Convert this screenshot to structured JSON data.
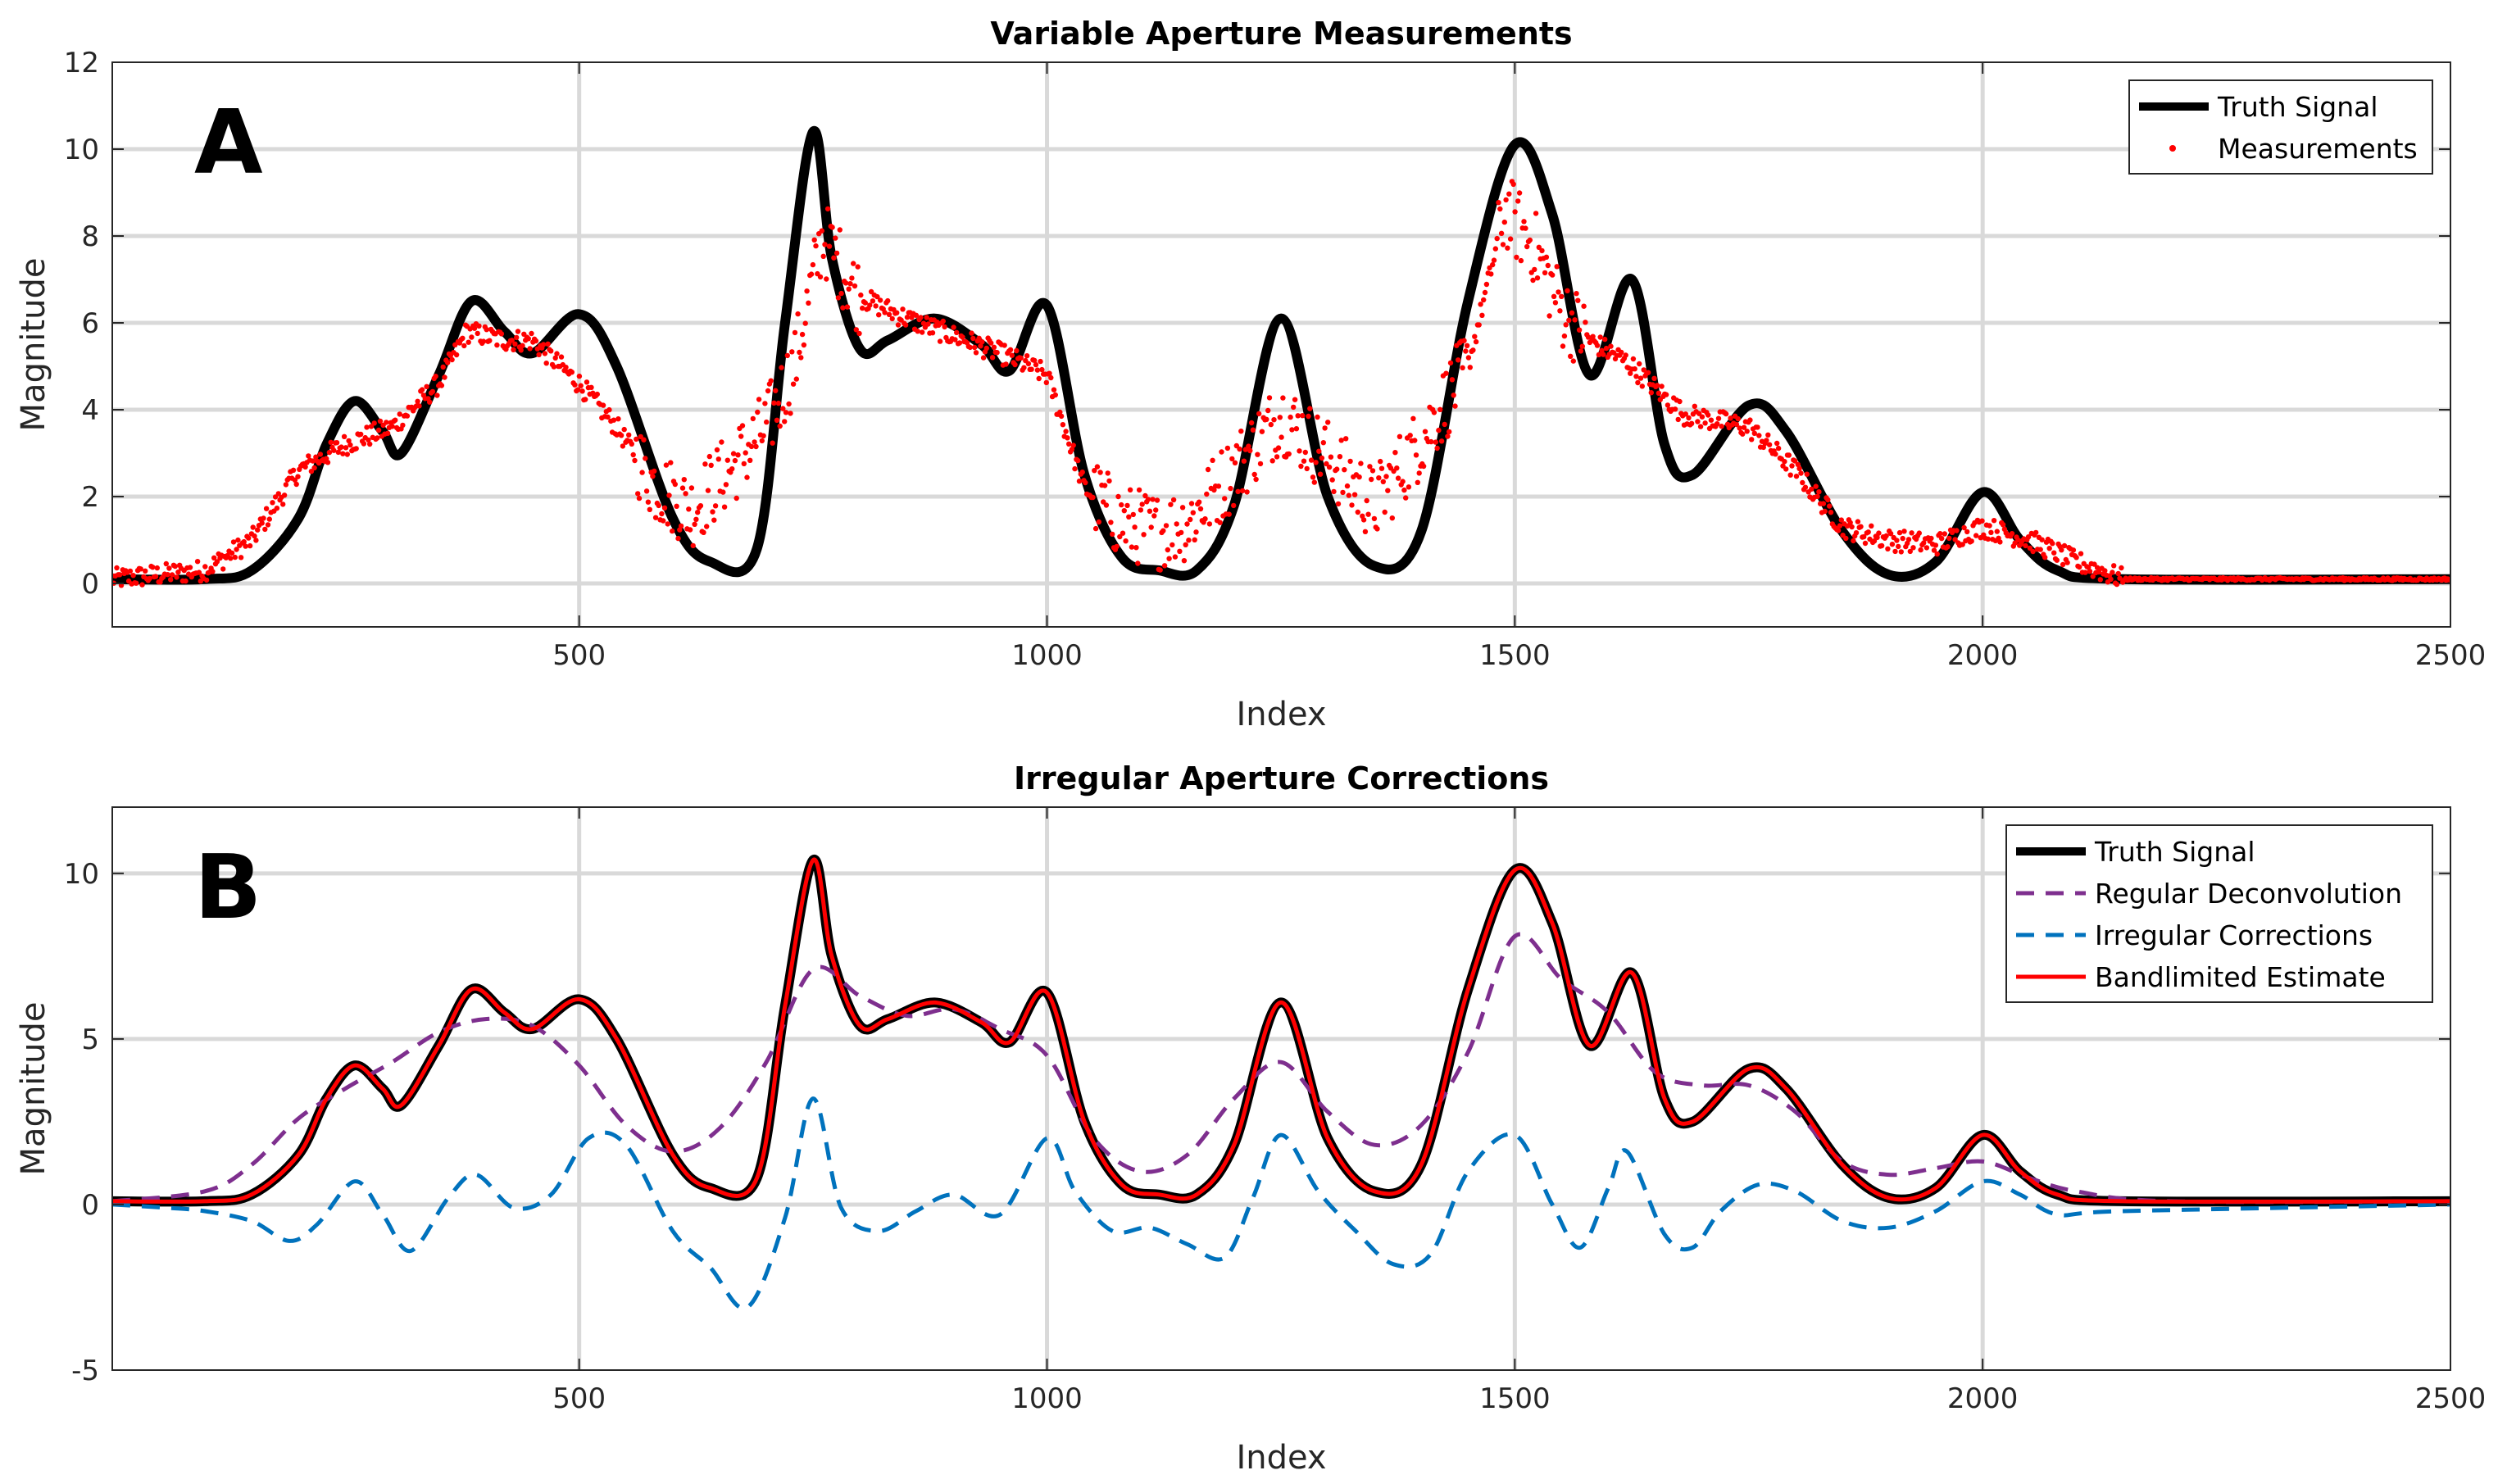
{
  "chart_data": [
    {
      "type": "line",
      "panel_label": "A",
      "title": "Variable Aperture Measurements",
      "xlabel": "Index",
      "ylabel": "Magnitude",
      "xlim": [
        1,
        2500
      ],
      "ylim": [
        -1,
        12
      ],
      "xticks": [
        500,
        1000,
        1500,
        2000,
        2500
      ],
      "yticks": [
        0,
        2,
        4,
        6,
        8,
        10,
        12
      ],
      "xtick_labels": [
        "500",
        "1000",
        "1500",
        "2000",
        "2500"
      ],
      "ytick_labels": [
        "0",
        "2",
        "4",
        "6",
        "8",
        "10",
        "12"
      ],
      "grid": true,
      "legend_position": "top-right",
      "series": [
        {
          "name": "Truth Signal",
          "style": "solid",
          "color": "#000000",
          "x": [
            1,
            100,
            150,
            200,
            230,
            260,
            290,
            310,
            350,
            385,
            420,
            450,
            500,
            540,
            600,
            640,
            690,
            720,
            750,
            770,
            800,
            830,
            880,
            930,
            960,
            1000,
            1040,
            1080,
            1120,
            1160,
            1200,
            1250,
            1300,
            1350,
            1400,
            1450,
            1500,
            1540,
            1580,
            1625,
            1660,
            1690,
            1750,
            1790,
            1850,
            1900,
            1950,
            2000,
            2040,
            2080,
            2150,
            2500
          ],
          "values": [
            0.1,
            0.1,
            0.3,
            1.5,
            3.2,
            4.2,
            3.5,
            3.0,
            4.8,
            6.5,
            5.8,
            5.3,
            6.2,
            5.0,
            1.5,
            0.5,
            0.8,
            6.0,
            10.4,
            7.5,
            5.4,
            5.6,
            6.1,
            5.5,
            4.9,
            6.4,
            2.5,
            0.6,
            0.3,
            0.3,
            1.8,
            6.1,
            2.0,
            0.4,
            1.2,
            6.5,
            10.1,
            8.5,
            4.8,
            7.0,
            3.2,
            2.5,
            4.1,
            3.5,
            1.2,
            0.2,
            0.5,
            2.1,
            1.0,
            0.3,
            0.1,
            0.1
          ]
        },
        {
          "name": "Measurements",
          "style": "points",
          "color": "#ff0000",
          "x": [
            1,
            100,
            150,
            200,
            250,
            300,
            350,
            380,
            420,
            450,
            500,
            540,
            580,
            620,
            660,
            700,
            730,
            760,
            800,
            850,
            900,
            950,
            1000,
            1040,
            1080,
            1120,
            1150,
            1200,
            1250,
            1300,
            1350,
            1400,
            1450,
            1490,
            1520,
            1550,
            1580,
            1620,
            1680,
            1750,
            1800,
            1850,
            1900,
            1950,
            2000,
            2050,
            2100,
            2150,
            2500
          ],
          "values": [
            0.1,
            0.3,
            1.0,
            2.6,
            3.2,
            3.6,
            4.6,
            5.8,
            5.6,
            5.6,
            4.6,
            3.6,
            2.3,
            1.7,
            2.6,
            3.6,
            5.0,
            8.0,
            6.6,
            6.1,
            5.7,
            5.3,
            4.8,
            2.2,
            1.4,
            1.2,
            1.4,
            2.6,
            3.9,
            2.9,
            1.8,
            3.3,
            5.0,
            8.6,
            7.8,
            6.3,
            5.6,
            5.1,
            3.9,
            3.6,
            2.6,
            1.3,
            1.0,
            0.9,
            1.3,
            1.0,
            0.5,
            0.1,
            0.1
          ]
        }
      ]
    },
    {
      "type": "line",
      "panel_label": "B",
      "title": "Irregular Aperture Corrections",
      "xlabel": "Index",
      "ylabel": "Magnitude",
      "xlim": [
        1,
        2500
      ],
      "ylim": [
        -5,
        12
      ],
      "xticks": [
        500,
        1000,
        1500,
        2000,
        2500
      ],
      "yticks": [
        -5,
        0,
        5,
        10
      ],
      "xtick_labels": [
        "500",
        "1000",
        "1500",
        "2000",
        "2500"
      ],
      "ytick_labels": [
        "-5",
        "0",
        "5",
        "10"
      ],
      "grid": true,
      "legend_position": "top-right",
      "series": [
        {
          "name": "Truth Signal",
          "style": "solid",
          "color": "#000000",
          "x": [
            1,
            100,
            150,
            200,
            230,
            260,
            290,
            310,
            350,
            385,
            420,
            450,
            500,
            540,
            600,
            640,
            690,
            720,
            750,
            770,
            800,
            830,
            880,
            930,
            960,
            1000,
            1040,
            1080,
            1120,
            1160,
            1200,
            1250,
            1300,
            1350,
            1400,
            1450,
            1500,
            1540,
            1580,
            1625,
            1660,
            1690,
            1750,
            1790,
            1850,
            1900,
            1950,
            2000,
            2040,
            2080,
            2150,
            2500
          ],
          "values": [
            0.1,
            0.1,
            0.3,
            1.5,
            3.2,
            4.2,
            3.5,
            3.0,
            4.8,
            6.5,
            5.8,
            5.3,
            6.2,
            5.0,
            1.5,
            0.5,
            0.8,
            6.0,
            10.4,
            7.5,
            5.4,
            5.6,
            6.1,
            5.5,
            4.9,
            6.4,
            2.5,
            0.6,
            0.3,
            0.3,
            1.8,
            6.1,
            2.0,
            0.4,
            1.2,
            6.5,
            10.1,
            8.5,
            4.8,
            7.0,
            3.2,
            2.5,
            4.1,
            3.5,
            1.2,
            0.2,
            0.5,
            2.1,
            1.0,
            0.3,
            0.1,
            0.1
          ]
        },
        {
          "name": "Regular Deconvolution",
          "style": "dashed",
          "color": "#7e2f8e",
          "x": [
            1,
            100,
            150,
            200,
            250,
            300,
            350,
            400,
            450,
            500,
            550,
            600,
            650,
            700,
            750,
            800,
            850,
            900,
            950,
            1000,
            1050,
            1100,
            1150,
            1200,
            1250,
            1300,
            1350,
            1400,
            1450,
            1500,
            1550,
            1600,
            1650,
            1700,
            1750,
            1800,
            1850,
            1900,
            1950,
            2000,
            2050,
            2100,
            2200,
            2500
          ],
          "values": [
            0.1,
            0.4,
            1.2,
            2.6,
            3.5,
            4.3,
            5.2,
            5.6,
            5.4,
            4.2,
            2.4,
            1.6,
            2.3,
            4.3,
            7.1,
            6.3,
            5.7,
            5.9,
            5.3,
            4.5,
            2.0,
            1.0,
            1.5,
            3.2,
            4.3,
            2.8,
            1.8,
            2.4,
            4.6,
            8.1,
            6.8,
            5.8,
            4.0,
            3.6,
            3.6,
            2.8,
            1.3,
            0.9,
            1.1,
            1.3,
            0.8,
            0.4,
            0.1,
            0.1
          ]
        },
        {
          "name": "Irregular Corrections",
          "style": "dashed",
          "color": "#0072bd",
          "x": [
            1,
            60,
            100,
            150,
            190,
            220,
            260,
            290,
            320,
            360,
            390,
            430,
            470,
            510,
            550,
            600,
            640,
            680,
            720,
            750,
            780,
            820,
            860,
            900,
            950,
            1000,
            1030,
            1070,
            1110,
            1150,
            1190,
            1220,
            1250,
            1290,
            1330,
            1370,
            1410,
            1450,
            1500,
            1540,
            1570,
            1600,
            1620,
            1660,
            1690,
            1720,
            1760,
            1800,
            1850,
            1900,
            1950,
            2000,
            2040,
            2080,
            2150,
            2500
          ],
          "values": [
            0.0,
            -0.1,
            -0.2,
            -0.5,
            -1.1,
            -0.6,
            0.7,
            -0.3,
            -1.4,
            0.2,
            0.9,
            -0.1,
            0.3,
            2.0,
            1.8,
            -0.8,
            -1.9,
            -3.1,
            -0.4,
            3.2,
            -0.1,
            -0.8,
            -0.2,
            0.3,
            -0.3,
            2.0,
            0.4,
            -0.8,
            -0.7,
            -1.2,
            -1.6,
            0.2,
            2.1,
            0.4,
            -0.8,
            -1.8,
            -1.5,
            1.0,
            2.1,
            0.0,
            -1.3,
            0.5,
            1.6,
            -0.9,
            -1.3,
            -0.2,
            0.6,
            0.4,
            -0.5,
            -0.7,
            -0.2,
            0.7,
            0.3,
            -0.3,
            -0.2,
            0.0
          ]
        },
        {
          "name": "Bandlimited Estimate",
          "style": "solid",
          "color": "#ff0000",
          "x": [
            1,
            100,
            150,
            200,
            230,
            260,
            290,
            310,
            350,
            385,
            420,
            450,
            500,
            540,
            600,
            640,
            690,
            720,
            750,
            770,
            800,
            830,
            880,
            930,
            960,
            1000,
            1040,
            1080,
            1120,
            1160,
            1200,
            1250,
            1300,
            1350,
            1400,
            1450,
            1500,
            1540,
            1580,
            1625,
            1660,
            1690,
            1750,
            1790,
            1850,
            1900,
            1950,
            2000,
            2040,
            2080,
            2150,
            2500
          ],
          "values": [
            0.1,
            0.1,
            0.3,
            1.5,
            3.2,
            4.2,
            3.5,
            3.0,
            4.8,
            6.5,
            5.8,
            5.3,
            6.2,
            5.0,
            1.5,
            0.5,
            0.8,
            6.0,
            10.4,
            7.5,
            5.4,
            5.6,
            6.1,
            5.5,
            4.9,
            6.4,
            2.5,
            0.6,
            0.3,
            0.3,
            1.8,
            6.1,
            2.0,
            0.4,
            1.2,
            6.5,
            10.1,
            8.5,
            4.8,
            7.0,
            3.2,
            2.5,
            4.1,
            3.5,
            1.2,
            0.2,
            0.5,
            2.1,
            1.0,
            0.3,
            0.1,
            0.1
          ]
        }
      ]
    }
  ]
}
